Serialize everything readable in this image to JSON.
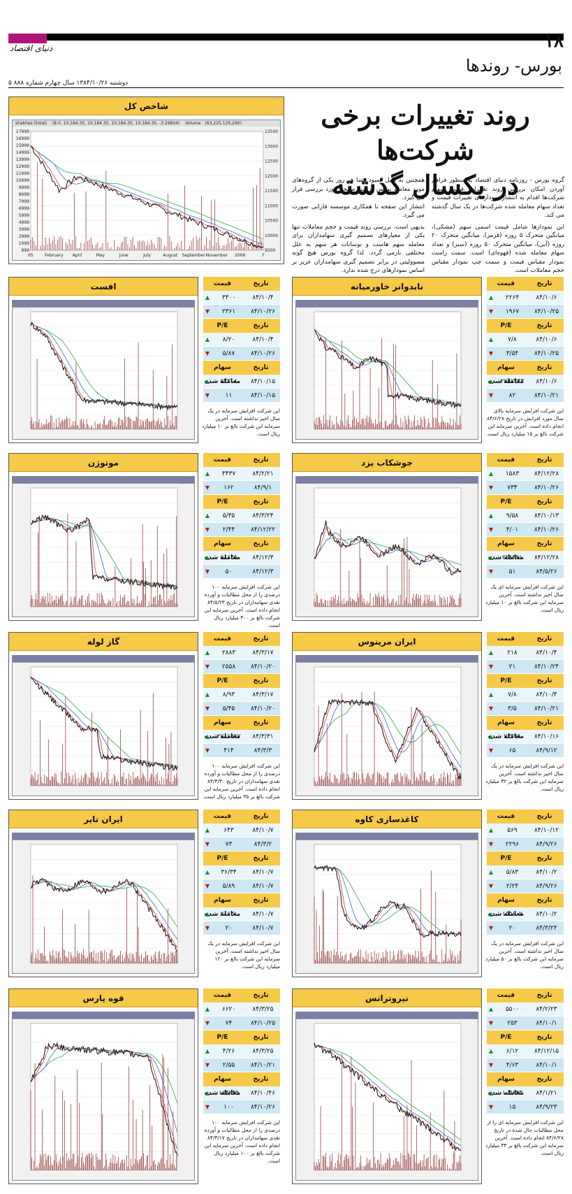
{
  "header": {
    "page_number": "۱۸",
    "logo": "دنیای اقتصاد",
    "section": "بورس- روندها",
    "issue": "۵ دوشنبه ۱۳۸۴/۱۰/۲۶ سال چهارم شماره ۸۸۸"
  },
  "headline": [
    "روند تغییرات برخی شرکت‌ها",
    "در یکسال گذشته"
  ],
  "intro": [
    "گروه بورس - روزنامه دنیای اقتصاد به منظور فراهم آوردن امکان بررسی روند تغییرات قیمت سهام شرکت‌ها اقدام به انتشار نمودارهای تغییرات قیمت و تعداد سهام معامله شده شرکت‌ها در یک سال گذشته می کند.",
    "این نمودارها شامل قیمت اسمی سهم (مشکی)، میانگین متحرک ۵ روزه (قرمز)، میانگین متحرک ۲۰ روزه (آبی)، میانگین متحرک ۵۰ روزه (سبز) و تعداد سهام معامله شده (قهوه‌ای) است. سمت راست نمودار مقیاس قیمت و سمت چپ نمودار مقیاس حجم معاملات است.",
    "همچنین به دلیل کمبود فضا هر روز یکی از گروه‌های مورد معامله بورس در این صفحه مورد بررسی قرار می گیرد.",
    "انتشار این صفحه با همکاری موسسه فارابی صورت می گیرد.",
    "بدیهی است، بررسی روند قیمت و حجم معاملات تنها یکی از معیارهای تصمیم گیری سهامداران برای معامله سهم هاست و نوسانات هر سهم به علل مختلفی بازمی گردد. لذا گروه بورس هیچ گونه مسوولیتی در برابر تصمیم گیری سهامداران عزیز بر اساس نمودارهای درج شده ندارد."
  ],
  "index_chart": {
    "title": "شاخص کل",
    "legend_a": "shakhes (total)",
    "legend_b": "(8.0, 10,184.35, 10,184.35, 10,184.35, 10,184.35, -3.29804)",
    "legend_c": "Volume",
    "legend_d": "(63,225,120,290)",
    "left_ticks": [
      "17999",
      "16999",
      "15999",
      "14999",
      "13999",
      "12999",
      "11999",
      "10999",
      "9999",
      "8999",
      "7999",
      "6999",
      "5999",
      "4999",
      "3999",
      "2999",
      "1999",
      "999"
    ],
    "right_ticks": [
      "13500",
      "13000",
      "12500",
      "12000",
      "11500",
      "11000",
      "10500",
      "10000",
      "9500"
    ],
    "x_ticks": [
      "05",
      "February",
      "April",
      "May",
      "June",
      "July",
      "August",
      "September",
      "November",
      "2006",
      "F"
    ]
  },
  "table_labels": {
    "price": "قیمت",
    "date": "تاریخ",
    "pe": "P/E",
    "volume": "سهام معامله شده"
  },
  "companies": [
    {
      "name": "نابدوانر خاورمیانه",
      "rows": [
        {
          "price": "۲۲۶۴",
          "date": "۸۴/۱۰/۶",
          "dir": "up"
        },
        {
          "price": "۱۹۶۷",
          "date": "۸۴/۱۰/۲۵",
          "dir": "down"
        },
        {
          "price": "۷/۸",
          "date": "۸۴/۱۰/۶",
          "dir": "up"
        },
        {
          "price": "۳/۵۴",
          "date": "۸۴/۱۰/۲۵",
          "dir": "down"
        },
        {
          "price": "۲۲۵۷۴۴۴",
          "date": "۸۴/۱۰/۶",
          "dir": "up"
        },
        {
          "price": "۸۲",
          "date": "۸۴/۱۰/۲۱",
          "dir": "down"
        }
      ],
      "caption": "این شرکت افزایش سرمایه بالای سال مورد افزایش در تاریخ ۸۴/۶/۲۸ انجام داده است. آخرین سرمایه این شرکت بالغ بر ۱۵ میلیارد ریال است."
    },
    {
      "name": "افست",
      "rows": [
        {
          "price": "۳۳۰۰",
          "date": "۸۴/۱۰/۴",
          "dir": "up"
        },
        {
          "price": "۲۳۶۱",
          "date": "۸۴/۱۰/۲۶",
          "dir": "down"
        },
        {
          "price": "۸/۲۰",
          "date": "۸۴/۱۰/۴",
          "dir": "up"
        },
        {
          "price": "۵/۸۷",
          "date": "۸۴/۱۰/۲۶",
          "dir": "down"
        },
        {
          "price": "۵۲۳۰۸",
          "date": "۸۴/۱۰/۱۵",
          "dir": "up"
        },
        {
          "price": "۱۱",
          "date": "۸۴/۱۰/۱۵",
          "dir": "down"
        }
      ],
      "caption": "این شرکت افزایش سرمایه در یک سال اخیر نداشته است. آخرین سرمایه این شرکت بالغ بر ۱۰ میلیارد ریال است."
    },
    {
      "name": "جوشکاب یزد",
      "rows": [
        {
          "price": "۱۵۸۳",
          "date": "۸۴/۱۲/۲۸",
          "dir": "up"
        },
        {
          "price": "۷۳۴",
          "date": "۸۴/۱۰/۲۶",
          "dir": "down"
        },
        {
          "price": "۹/۵۸",
          "date": "۸۴/۱۰/۱۳",
          "dir": "up"
        },
        {
          "price": "۴/۰۱",
          "date": "۸۴/۱۰/۲۶",
          "dir": "down"
        },
        {
          "price": "۲۲۸۳۹۱",
          "date": "۸۴/۱۲/۲۸",
          "dir": "up"
        },
        {
          "price": "۵۱",
          "date": "۸۴/۵/۲۶",
          "dir": "down"
        }
      ],
      "caption": "این شرکت افزایش سرمایه ای یک سال اخیر نداشته است. آخرین سرمایه این شرکت بالغ بر ۱۰ میلیارد ریال است."
    },
    {
      "name": "موتوژن",
      "rows": [
        {
          "price": "۴۴۳۷",
          "date": "۸۴/۲/۲۱",
          "dir": "up"
        },
        {
          "price": "۱۶۲",
          "date": "۸۴/۹/۱",
          "dir": "down"
        },
        {
          "price": "۵/۳۵",
          "date": "۸۴/۳/۲۴",
          "dir": "up"
        },
        {
          "price": "۲/۴۴",
          "date": "۸۴/۱۲/۲۲",
          "dir": "down"
        },
        {
          "price": "۵۸۶۳۵",
          "date": "۸۴/۱۲/۳",
          "dir": "up"
        },
        {
          "price": "۵۰",
          "date": "۸۴/۱۲/۳",
          "dir": "down"
        }
      ],
      "caption": "این شرکت افزایش سرمایه ۱۰۰ درصدی را از محل مطالبات و آورده نقدی سهامداران در تاریخ ۸۴/۵/۲۳ انجام داده است. آخرین سرمایه این شرکت بالغ بر ۴۰۰ میلیارد ریال است."
    },
    {
      "name": "ایران مرینوس",
      "rows": [
        {
          "price": "۲۱۸",
          "date": "۸۴/۱۰/۴",
          "dir": "up"
        },
        {
          "price": "۲۱",
          "date": "۸۴/۱۰/۲۴",
          "dir": "down"
        },
        {
          "price": "۷/۸",
          "date": "۸۴/۱۰/۴",
          "dir": "up"
        },
        {
          "price": "۳/۵",
          "date": "۸۴/۱۰/۲۱",
          "dir": "down"
        },
        {
          "price": "۷۳۴۹۹",
          "date": "۸۴/۱۰/۱۶",
          "dir": "up"
        },
        {
          "price": "۶۵",
          "date": "۸۴/۹/۱۲",
          "dir": "down"
        }
      ],
      "caption": "این شرکت افزایش سرمایه در یک سال اخیر نداشته است. آخرین سرمایه این شرکت بالغ بر ۳۲ میلیارد ریال است."
    },
    {
      "name": "گاز لوله",
      "rows": [
        {
          "price": "۲۸۸۳",
          "date": "۸۴/۳/۱۷",
          "dir": "up"
        },
        {
          "price": "۲۵۵۸",
          "date": "۸۴/۱۰/۲۰",
          "dir": "down"
        },
        {
          "price": "۸/۹۳",
          "date": "۸۴/۳/۱۷",
          "dir": "up"
        },
        {
          "price": "۵/۴۵",
          "date": "۸۴/۱۰/۲۰",
          "dir": "down"
        },
        {
          "price": "۲۷۸۶۵۹۷",
          "date": "۸۴/۳/۳۱",
          "dir": "up"
        },
        {
          "price": "۴۱۴",
          "date": "۸۴/۳/۳",
          "dir": "down"
        }
      ],
      "caption": "این شرکت افزایش سرمایه ۱۰۰ درصدی را از محل مطالبات و آورده نقدی سهامداران در تاریخ ۸۴/۳/۳۰ انجام داده است. آخرین سرمایه این شرکت بالغ بر ۳۵ میلیارد ریال است."
    },
    {
      "name": "کاغذسازی کاوه",
      "rows": [
        {
          "price": "۵۶۹",
          "date": "۸۴/۱۰/۱۲",
          "dir": "up"
        },
        {
          "price": "۲۲۹۶",
          "date": "۸۴/۹/۲۶",
          "dir": "down"
        },
        {
          "price": "۵/۸۳",
          "date": "۸۴/۱۰/۲",
          "dir": "up"
        },
        {
          "price": "۲/۲۴",
          "date": "۸۴/۹/۲۶",
          "dir": "down"
        },
        {
          "price": "۱۵۵۱۰۷",
          "date": "۸۴/۱۰/۲",
          "dir": "up"
        },
        {
          "price": "۲۰",
          "date": "۸۴/۳/۲۴",
          "dir": "down"
        }
      ],
      "caption": "این شرکت افزایش سرمایه در یک سال اخیر نداشته است. آخرین سرمایه این شرکت بالغ بر ۵۰ میلیارد ریال است."
    },
    {
      "name": "ایران تایر",
      "rows": [
        {
          "price": "۶۴۳",
          "date": "۸۴/۱۰/۷",
          "dir": "up"
        },
        {
          "price": "۷۳",
          "date": "۸۴/۳/۲",
          "dir": "down"
        },
        {
          "price": "۳۶/۳۴",
          "date": "۸۴/۱۰/۷",
          "dir": "up"
        },
        {
          "price": "۵/۸۹",
          "date": "۸۴/۱۰/۷",
          "dir": "down"
        },
        {
          "price": "۲۸۶۳۱",
          "date": "۸۴/۱۰/۷",
          "dir": "up"
        },
        {
          "price": "۲۰",
          "date": "۸۴/۱۰/۷",
          "dir": "down"
        }
      ],
      "caption": "این شرکت افزایش سرمایه در یک سال اخیر نداشته است. آخرین سرمایه این شرکت بالغ بر ۱۲۰ میلیارد ریال است."
    },
    {
      "name": "نیروترانس",
      "rows": [
        {
          "price": "۵۵۰۰",
          "date": "۸۴/۲/۲۳",
          "dir": "up"
        },
        {
          "price": "۲۵۳",
          "date": "۸۴/۱۰/۱",
          "dir": "down"
        },
        {
          "price": "۶/۱۲",
          "date": "۸۴/۱۲/۱۵",
          "dir": "up"
        },
        {
          "price": "۴/۶۳",
          "date": "۸۴/۱۰/۱",
          "dir": "down"
        },
        {
          "price": "۱۰۴۶۴۳",
          "date": "۸۴/۱/۲۱",
          "dir": "up"
        },
        {
          "price": "۱۵",
          "date": "۸۴/۹/۲۳",
          "dir": "down"
        }
      ],
      "caption": "این شرکت افزایش سرمایه ای را از محل مطالبات حال شده در تاریخ ۸۴/۶/۲۸ انجام داده است. آخرین سرمایه این شرکت بالغ بر ۴۳ میلیارد ریال است."
    },
    {
      "name": "قوه پارس",
      "rows": [
        {
          "price": "۶۶۲۰",
          "date": "۸۴/۳/۲۵",
          "dir": "up"
        },
        {
          "price": "۷۴",
          "date": "۸۴/۱۰/۲۵",
          "dir": "down"
        },
        {
          "price": "۴/۲۶",
          "date": "۸۴/۳/۲۵",
          "dir": "up"
        },
        {
          "price": "۲/۵۵",
          "date": "۸۴/۱۰/۲۱",
          "dir": "down"
        },
        {
          "price": "۱۶۴۲۴۹",
          "date": "۸۴/۱۰/۴۶",
          "dir": "up"
        },
        {
          "price": "۱۰۰",
          "date": "۸۴/۱۰/۲۶",
          "dir": "down"
        }
      ],
      "caption": "این شرکت افزایش سرمایه ۱۰۰ درصدی را از محل مطالبات و آورده نقدی سهامداران در تاریخ ۸۴/۳/۱۷ انجام داده است. آخرین سرمایه این شرکت بالغ بر ۱۰۰ میلیارد ریال است."
    }
  ]
}
